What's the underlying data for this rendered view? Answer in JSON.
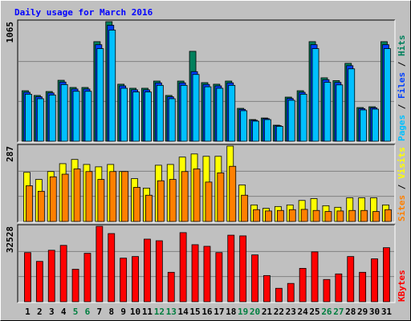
{
  "title": "Daily usage for March 2016",
  "categories": [
    "1",
    "2",
    "3",
    "4",
    "5",
    "6",
    "7",
    "8",
    "9",
    "10",
    "11",
    "12",
    "13",
    "14",
    "15",
    "16",
    "17",
    "18",
    "19",
    "20",
    "21",
    "22",
    "23",
    "24",
    "25",
    "26",
    "27",
    "28",
    "29",
    "30",
    "31"
  ],
  "weekend": [
    false,
    false,
    false,
    false,
    true,
    true,
    false,
    false,
    false,
    false,
    false,
    true,
    true,
    false,
    false,
    false,
    false,
    false,
    true,
    true,
    false,
    false,
    false,
    false,
    false,
    true,
    true,
    false,
    false,
    false,
    false
  ],
  "label_color": "#000000",
  "weekend_label_color": "#007f40",
  "legend_separator": " / ",
  "chart_data": [
    {
      "type": "bar",
      "ylim": [
        0,
        1065
      ],
      "yticks": [
        1065
      ],
      "series": [
        {
          "name": "Hits",
          "color": "#00805c",
          "values": [
            450,
            408,
            443,
            543,
            479,
            479,
            887,
            1065,
            508,
            472,
            472,
            536,
            408,
            536,
            801,
            522,
            508,
            536,
            293,
            193,
            207,
            143,
            393,
            450,
            887,
            565,
            540,
            694,
            300,
            307,
            887
          ]
        },
        {
          "name": "Files",
          "color": "#0040ff",
          "values": [
            436,
            396,
            430,
            527,
            465,
            465,
            860,
            1033,
            493,
            458,
            458,
            520,
            396,
            520,
            620,
            506,
            493,
            520,
            284,
            187,
            201,
            139,
            381,
            436,
            860,
            548,
            524,
            673,
            291,
            298,
            860
          ]
        },
        {
          "name": "Pages",
          "color": "#00c0ff",
          "values": [
            419,
            379,
            412,
            505,
            445,
            445,
            825,
            990,
            472,
            439,
            439,
            498,
            379,
            498,
            595,
            485,
            472,
            498,
            272,
            179,
            193,
            133,
            365,
            419,
            825,
            525,
            502,
            645,
            279,
            286,
            825
          ]
        }
      ]
    },
    {
      "type": "bar",
      "ylim": [
        0,
        287
      ],
      "yticks": [
        287
      ],
      "series": [
        {
          "name": "Visits",
          "color": "#ffff00",
          "values": [
            187,
            160,
            190,
            220,
            236,
            217,
            208,
            217,
            190,
            163,
            127,
            214,
            217,
            245,
            257,
            248,
            248,
            287,
            139,
            63,
            50,
            57,
            63,
            80,
            87,
            60,
            54,
            90,
            90,
            90,
            63
          ]
        },
        {
          "name": "Sites",
          "color": "#ff8000",
          "values": [
            136,
            115,
            170,
            180,
            200,
            190,
            160,
            190,
            190,
            130,
            100,
            155,
            160,
            190,
            200,
            150,
            185,
            210,
            100,
            45,
            40,
            42,
            45,
            46,
            42,
            38,
            40,
            42,
            42,
            38,
            45
          ]
        }
      ]
    },
    {
      "type": "bar",
      "ylim": [
        0,
        32528
      ],
      "yticks": [
        32528
      ],
      "series": [
        {
          "name": "KBytes",
          "color": "#ff0000",
          "values": [
            21200,
            17400,
            22200,
            24300,
            14000,
            20900,
            32528,
            29400,
            18800,
            19500,
            27000,
            26300,
            12700,
            29800,
            24600,
            23900,
            21200,
            28700,
            28400,
            20200,
            11300,
            5800,
            7900,
            14400,
            21500,
            9600,
            12000,
            19500,
            12700,
            18500,
            23300
          ]
        }
      ]
    }
  ]
}
